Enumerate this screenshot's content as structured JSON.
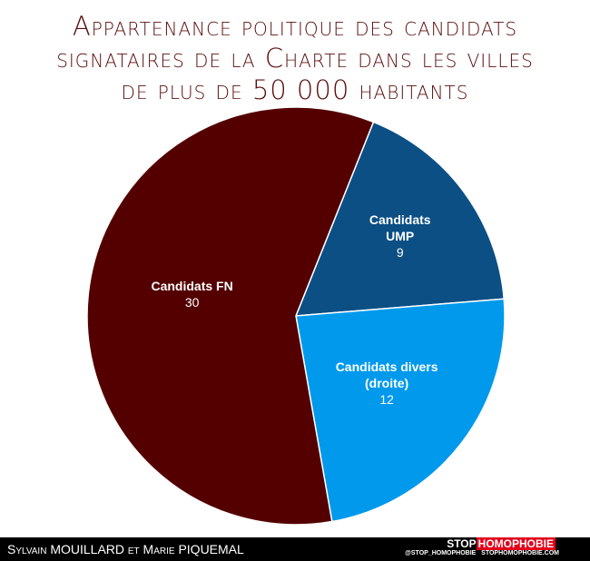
{
  "chart_data": {
    "type": "pie",
    "title": "Appartenance politique des candidats signataires de la Charte dans les villes de plus de 50 000 habitants",
    "categories": [
      "Candidats UMP",
      "Candidats divers (droite)",
      "Candidats FN"
    ],
    "values": [
      9,
      12,
      30
    ],
    "colors": [
      "#0b4f85",
      "#0099ec",
      "#540000"
    ]
  },
  "footer": {
    "credit": "Sylvain MOUILLARD et Marie PIQUEMAL",
    "logo_left": "STOP",
    "logo_right": "HOMOPHOBIE",
    "handle": "@STOP_HOMOPHOBIE",
    "site": "STOPHOMOPHOBIE.COM"
  }
}
